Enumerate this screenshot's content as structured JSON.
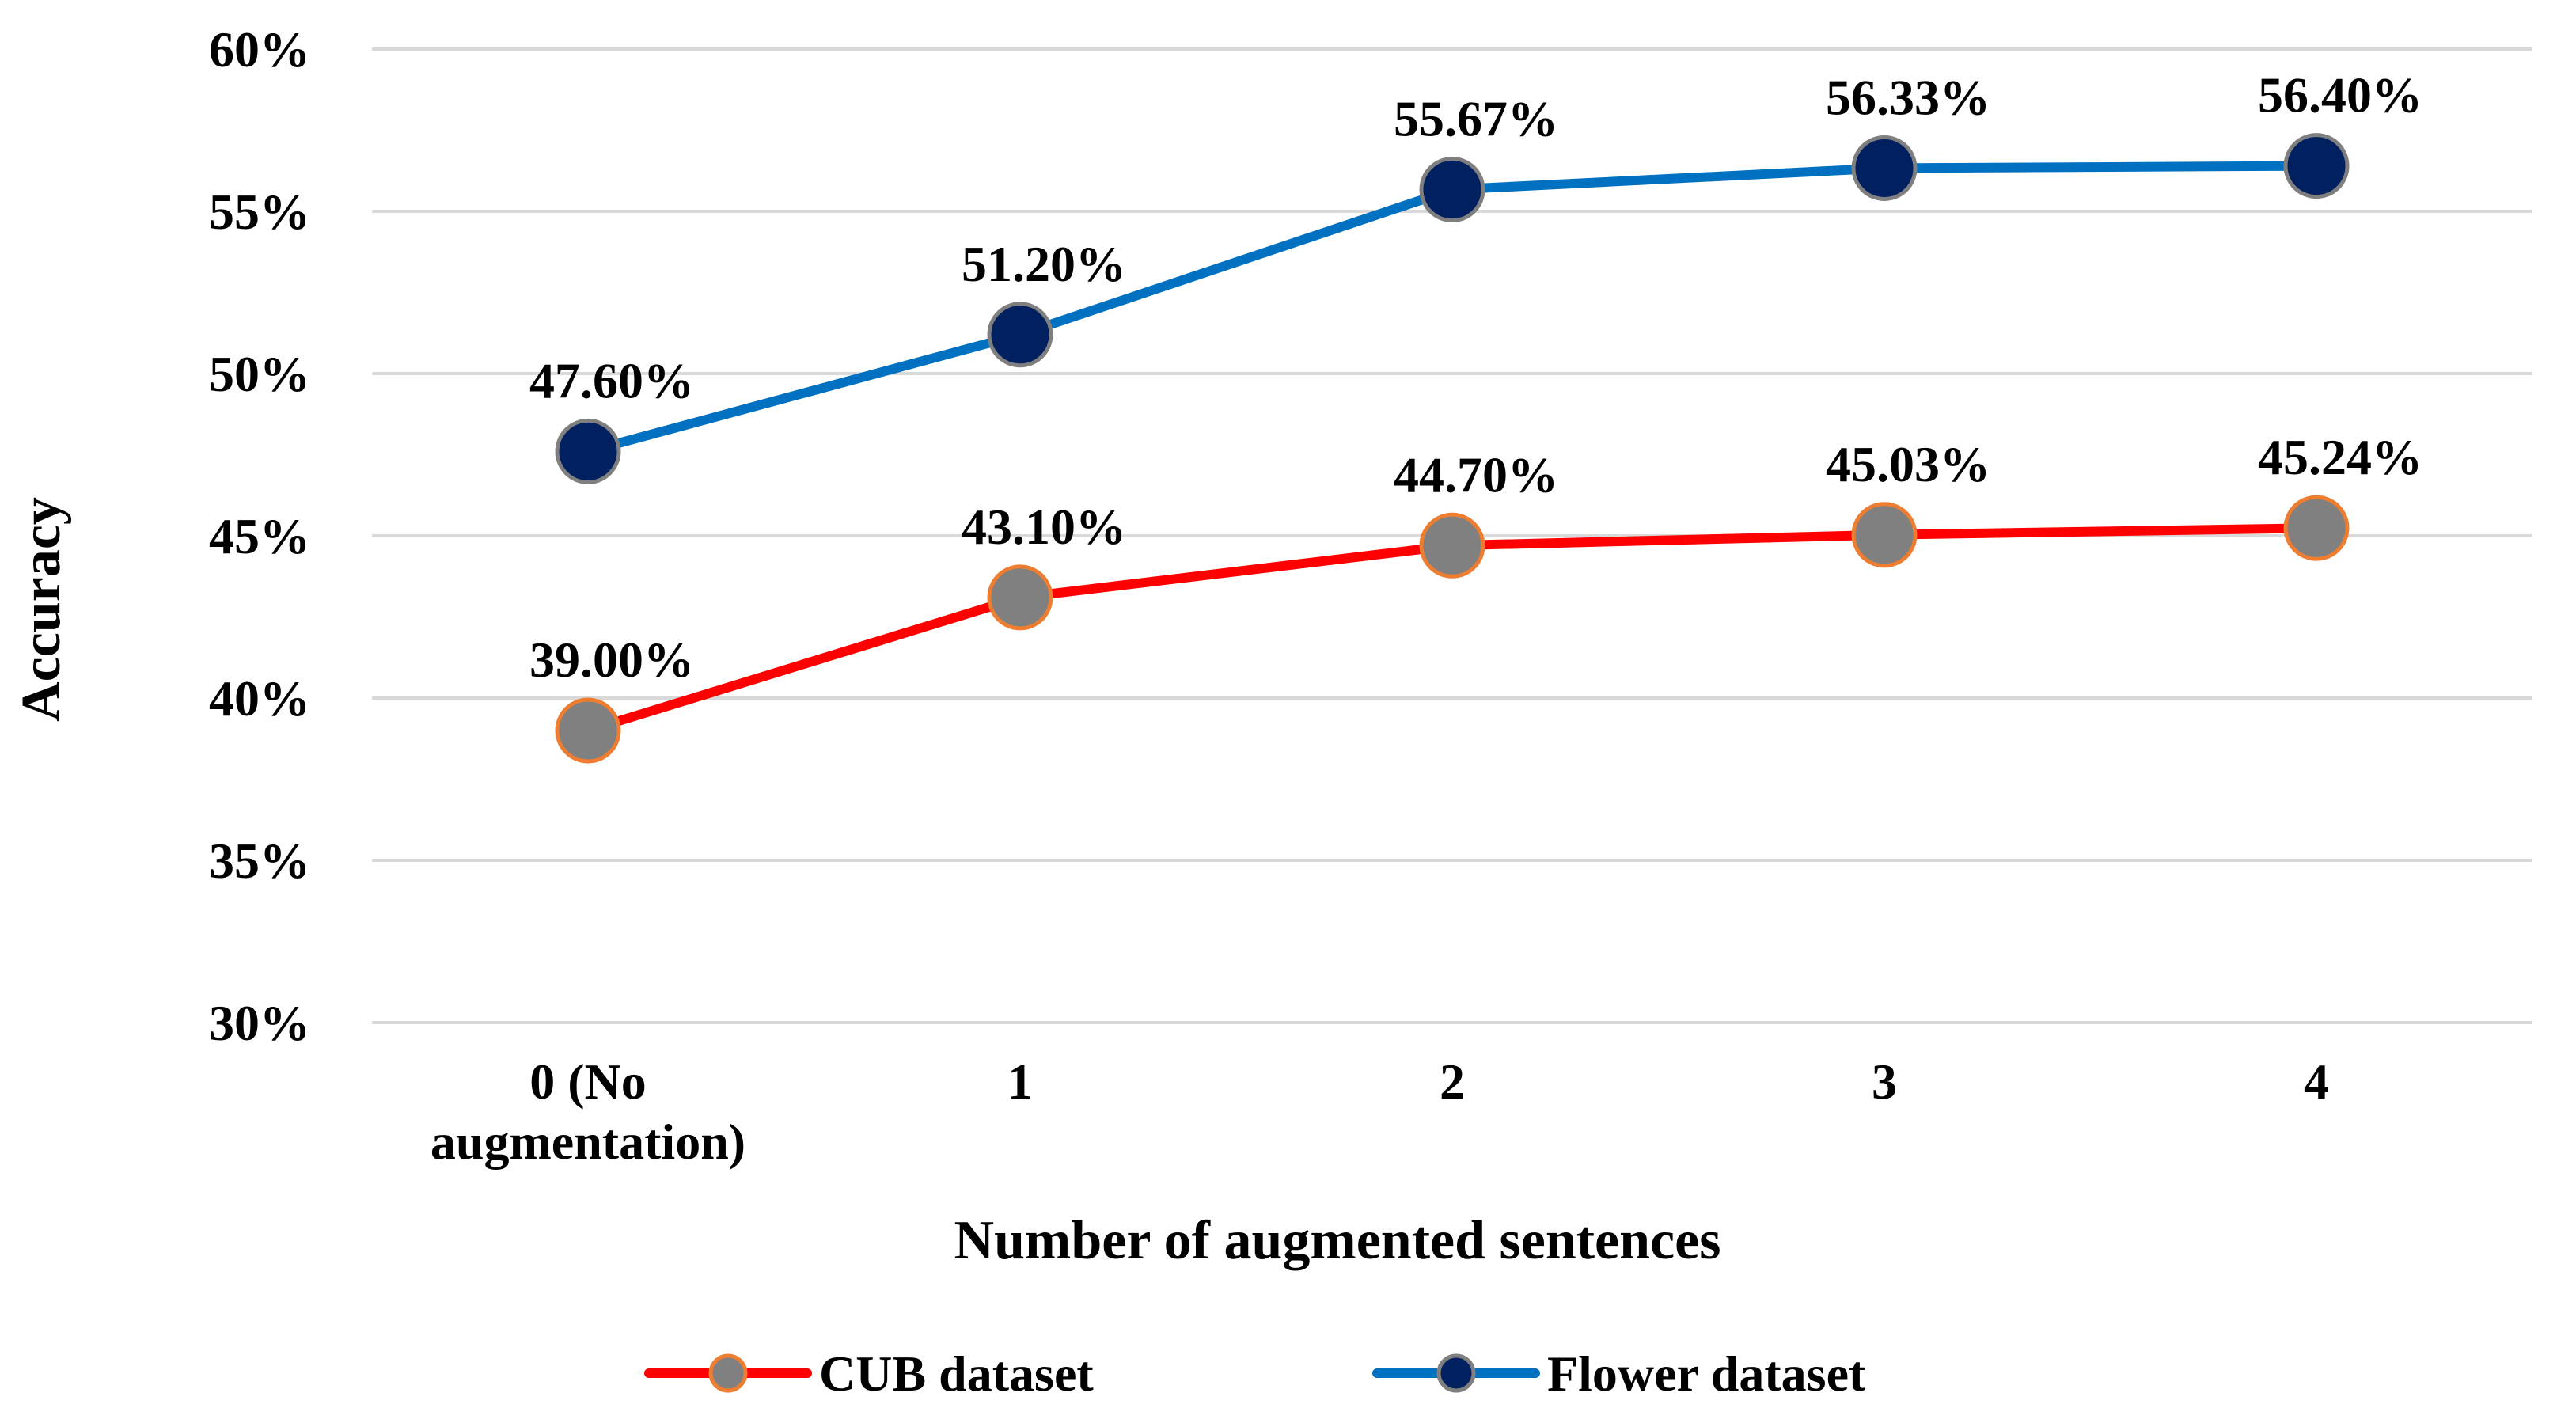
{
  "chart_data": {
    "type": "line",
    "categories": [
      [
        "0 (No",
        "augmentation)"
      ],
      [
        "1"
      ],
      [
        "2"
      ],
      [
        "3"
      ],
      [
        "4"
      ]
    ],
    "series": [
      {
        "name": "CUB dataset",
        "values": [
          39.0,
          43.1,
          44.7,
          45.03,
          45.24
        ],
        "labels": [
          "39.00%",
          "43.10%",
          "44.70%",
          "45.03%",
          "45.24%"
        ],
        "line_color": "#ff0000",
        "marker_fill": "#808080",
        "marker_stroke": "#ed7d31"
      },
      {
        "name": "Flower dataset",
        "values": [
          47.6,
          51.2,
          55.67,
          56.33,
          56.4
        ],
        "labels": [
          "47.60%",
          "51.20%",
          "55.67%",
          "56.33%",
          "56.40%"
        ],
        "line_color": "#0070c0",
        "marker_fill": "#002060",
        "marker_stroke": "#7f7f7f"
      }
    ],
    "xlabel": "Number of augmented sentences",
    "ylabel": "Accuracy",
    "ylim": [
      30,
      60
    ],
    "yticks": [
      30,
      35,
      40,
      45,
      50,
      55,
      60
    ],
    "ytick_labels": [
      "30%",
      "35%",
      "40%",
      "45%",
      "50%",
      "55%",
      "60%"
    ],
    "grid": true,
    "legend_position": "bottom"
  }
}
